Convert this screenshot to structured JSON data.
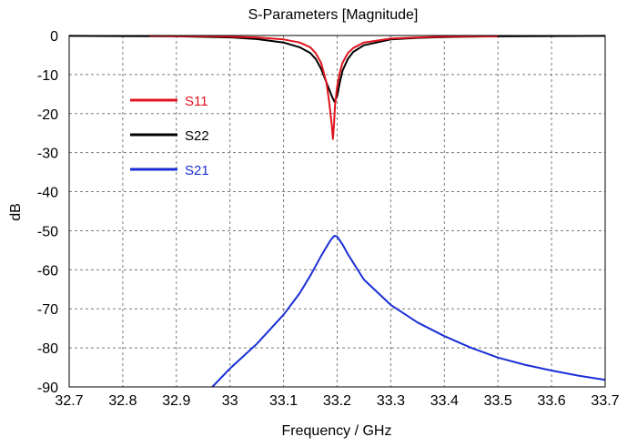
{
  "chart_data": {
    "type": "line",
    "title": "S-Parameters [Magnitude]",
    "xlabel": "Frequency / GHz",
    "ylabel": "dB",
    "xlim": [
      32.7,
      33.7
    ],
    "ylim": [
      -90,
      0
    ],
    "x_ticks": [
      "32.7",
      "32.8",
      "32.9",
      "33",
      "33.1",
      "33.2",
      "33.3",
      "33.4",
      "33.5",
      "33.6",
      "33.7"
    ],
    "y_ticks": [
      "0",
      "-10",
      "-20",
      "-30",
      "-40",
      "-50",
      "-60",
      "-70",
      "-80",
      "-90"
    ],
    "grid": true,
    "legend_position": "upper-left",
    "series": [
      {
        "name": "S11",
        "color": "#e0141e",
        "x": [
          32.85,
          33.0,
          33.05,
          33.1,
          33.13,
          33.15,
          33.16,
          33.17,
          33.18,
          33.185,
          33.19,
          33.192,
          33.194,
          33.196,
          33.2,
          33.205,
          33.21,
          33.22,
          33.23,
          33.25,
          33.3,
          33.35,
          33.4,
          33.5
        ],
        "y": [
          -0.1,
          -0.3,
          -0.5,
          -1.0,
          -1.8,
          -3.0,
          -4.5,
          -7.0,
          -12.0,
          -17.0,
          -23.0,
          -26.5,
          -23.0,
          -18.0,
          -13.0,
          -9.5,
          -7.0,
          -4.5,
          -3.2,
          -1.8,
          -0.8,
          -0.5,
          -0.3,
          -0.2
        ]
      },
      {
        "name": "S22",
        "color": "#000000",
        "x": [
          32.7,
          32.9,
          33.0,
          33.05,
          33.1,
          33.13,
          33.15,
          33.16,
          33.17,
          33.18,
          33.19,
          33.195,
          33.2,
          33.205,
          33.21,
          33.22,
          33.23,
          33.25,
          33.3,
          33.35,
          33.4,
          33.5,
          33.7
        ],
        "y": [
          -0.1,
          -0.2,
          -0.5,
          -0.9,
          -1.8,
          -3.0,
          -4.5,
          -6.0,
          -8.5,
          -12.0,
          -15.5,
          -17.0,
          -15.5,
          -12.0,
          -9.0,
          -6.0,
          -4.2,
          -2.5,
          -1.0,
          -0.6,
          -0.4,
          -0.2,
          -0.1
        ]
      },
      {
        "name": "S21",
        "color": "#1a2fd6",
        "x": [
          32.967,
          33.0,
          33.05,
          33.1,
          33.13,
          33.15,
          33.17,
          33.185,
          33.19,
          33.195,
          33.2,
          33.21,
          33.22,
          33.25,
          33.3,
          33.35,
          33.4,
          33.45,
          33.5,
          33.55,
          33.6,
          33.65,
          33.7
        ],
        "y": [
          -90.0,
          -85.3,
          -79.0,
          -71.5,
          -66.0,
          -61.5,
          -56.5,
          -53.0,
          -52.0,
          -51.3,
          -51.5,
          -53.5,
          -56.0,
          -62.5,
          -69.0,
          -73.5,
          -77.0,
          -80.0,
          -82.5,
          -84.3,
          -85.8,
          -87.1,
          -88.2
        ]
      }
    ]
  }
}
